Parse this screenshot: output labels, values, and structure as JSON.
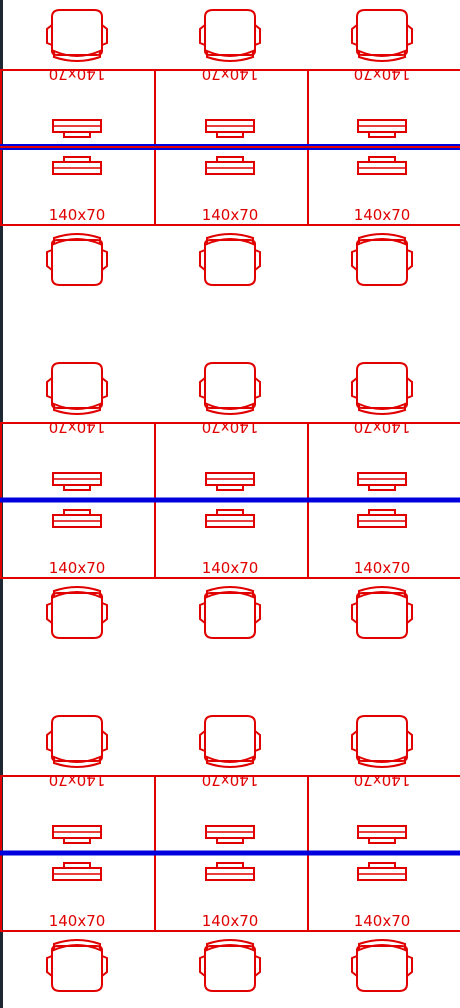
{
  "drawing": {
    "desk_label": "140x70",
    "desk_label_rotated": "140x70",
    "colors": {
      "furniture": "#e10000",
      "axis_line": "#0000dd",
      "edge_bar": "#1f2733",
      "background": "#ffffff"
    },
    "blocks": [
      {
        "name": "workstation-block-1",
        "desks_per_row": 3,
        "rows": 2
      },
      {
        "name": "workstation-block-2",
        "desks_per_row": 3,
        "rows": 2
      },
      {
        "name": "workstation-block-3",
        "desks_per_row": 3,
        "rows": 2
      }
    ],
    "icons": [
      "office-chair-icon",
      "monitor-icon",
      "desk-outline",
      "center-axis-line"
    ]
  }
}
